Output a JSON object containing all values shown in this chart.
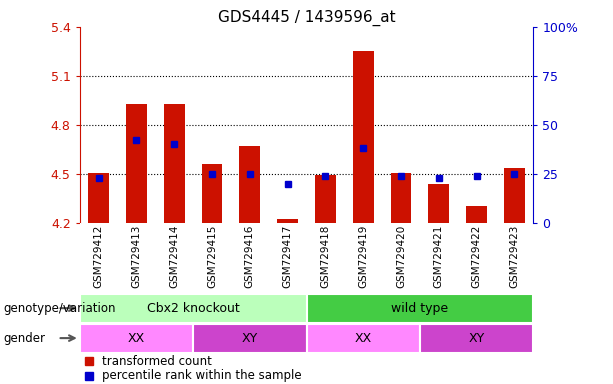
{
  "title": "GDS4445 / 1439596_at",
  "samples": [
    "GSM729412",
    "GSM729413",
    "GSM729414",
    "GSM729415",
    "GSM729416",
    "GSM729417",
    "GSM729418",
    "GSM729419",
    "GSM729420",
    "GSM729421",
    "GSM729422",
    "GSM729423"
  ],
  "bar_bottom": 4.2,
  "bar_values": [
    4.505,
    4.93,
    4.93,
    4.56,
    4.67,
    4.225,
    4.495,
    5.25,
    4.505,
    4.44,
    4.305,
    4.535
  ],
  "percentile_values": [
    23,
    42,
    40,
    25,
    25,
    20,
    24,
    38,
    24,
    23,
    24,
    25
  ],
  "ylim_left": [
    4.2,
    5.4
  ],
  "ylim_right": [
    0,
    100
  ],
  "yticks_left": [
    4.2,
    4.5,
    4.8,
    5.1,
    5.4
  ],
  "yticks_right": [
    0,
    25,
    50,
    75,
    100
  ],
  "ytick_labels_left": [
    "4.2",
    "4.5",
    "4.8",
    "5.1",
    "5.4"
  ],
  "ytick_labels_right": [
    "0",
    "25",
    "50",
    "75",
    "100%"
  ],
  "hlines": [
    4.5,
    4.8,
    5.1
  ],
  "bar_color": "#cc1100",
  "dot_color": "#0000cc",
  "bar_width": 0.55,
  "genotype_groups": [
    {
      "label": "Cbx2 knockout",
      "start": 0,
      "end": 6,
      "color": "#bbffbb"
    },
    {
      "label": "wild type",
      "start": 6,
      "end": 12,
      "color": "#44cc44"
    }
  ],
  "gender_groups": [
    {
      "label": "XX",
      "start": 0,
      "end": 3,
      "color": "#ff88ff"
    },
    {
      "label": "XY",
      "start": 3,
      "end": 6,
      "color": "#cc44cc"
    },
    {
      "label": "XX",
      "start": 6,
      "end": 9,
      "color": "#ff88ff"
    },
    {
      "label": "XY",
      "start": 9,
      "end": 12,
      "color": "#cc44cc"
    }
  ],
  "genotype_label": "genotype/variation",
  "gender_label": "gender",
  "legend_items": [
    {
      "label": "transformed count",
      "color": "#cc1100"
    },
    {
      "label": "percentile rank within the sample",
      "color": "#0000cc"
    }
  ],
  "left_axis_color": "#cc1100",
  "right_axis_color": "#0000cc",
  "tick_bg_color": "#d8d8d8",
  "plot_bg_color": "#ffffff",
  "arrow_color": "#555555"
}
